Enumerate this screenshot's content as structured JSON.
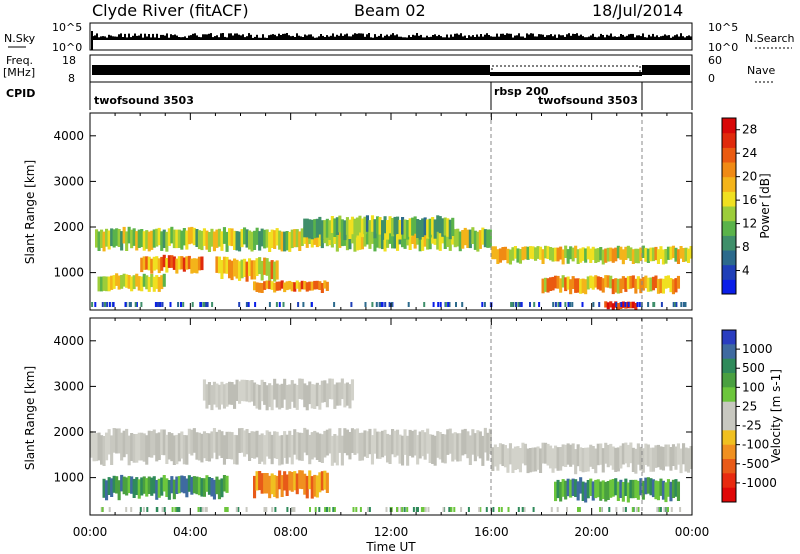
{
  "header": {
    "station": "Clyde River (fitACF)",
    "beam": "Beam 02",
    "date": "18/Jul/2014"
  },
  "top_panels": {
    "nsky_label": "N.Sky",
    "nsky_ticks": [
      "10^5",
      "10^0"
    ],
    "nsearch_label": "N.Search",
    "nsearch_ticks": [
      "10^5",
      "10^0"
    ],
    "freq_label": "Freq.",
    "freq_unit": "[MHz]",
    "freq_ticks": [
      "18",
      "8"
    ],
    "nave_label": "Nave",
    "nave_ticks": [
      "60",
      "0"
    ],
    "cpid_label": "CPID",
    "cpid_segments": [
      {
        "name": "twofsound 3503",
        "start_hour": 0,
        "end_hour": 16
      },
      {
        "name": "rbsp 200",
        "start_hour": 16,
        "end_hour": 22
      },
      {
        "name": "twofsound 3503",
        "start_hour": 16,
        "end_hour": 22
      }
    ]
  },
  "chart_data": [
    {
      "type": "heatmap",
      "name": "power",
      "xlabel": "Time UT",
      "ylabel": "Slant Range [km]",
      "xticks": [
        "00:00",
        "04:00",
        "08:00",
        "12:00",
        "16:00",
        "20:00",
        "00:00"
      ],
      "xlim_hours": [
        0,
        24
      ],
      "yticks": [
        1000,
        2000,
        3000,
        4000
      ],
      "ylim": [
        180,
        4500
      ],
      "colorbar": {
        "label": "Power [dB]",
        "ticks": [
          4,
          8,
          12,
          16,
          20,
          24,
          28
        ],
        "range": [
          0,
          30
        ],
        "colors": [
          "#0a1ee8",
          "#1f3fb8",
          "#2c6a8c",
          "#3f8f6a",
          "#5ab34a",
          "#9ccd3a",
          "#f0e020",
          "#f4b41a",
          "#f08a14",
          "#ea5a10",
          "#e02a0c",
          "#d80808"
        ]
      },
      "bands": [
        {
          "t0": 0.2,
          "t1": 16.0,
          "r0": 1550,
          "r1": 1950,
          "val": 14
        },
        {
          "t0": 2.0,
          "t1": 4.5,
          "r0": 1050,
          "r1": 1350,
          "val": 22
        },
        {
          "t0": 0.3,
          "t1": 3.0,
          "r0": 650,
          "r1": 950,
          "val": 16
        },
        {
          "t0": 5.0,
          "t1": 7.5,
          "r0": 900,
          "r1": 1300,
          "val": 18
        },
        {
          "t0": 6.5,
          "t1": 9.5,
          "r0": 600,
          "r1": 800,
          "val": 22
        },
        {
          "t0": 8.5,
          "t1": 14.5,
          "r0": 1800,
          "r1": 2200,
          "val": 12
        },
        {
          "t0": 16.0,
          "t1": 24.0,
          "r0": 1250,
          "r1": 1550,
          "val": 16
        },
        {
          "t0": 18.0,
          "t1": 23.5,
          "r0": 600,
          "r1": 900,
          "val": 20
        },
        {
          "t0": 20.5,
          "t1": 21.8,
          "r0": 200,
          "r1": 350,
          "val": 28
        }
      ]
    },
    {
      "type": "heatmap",
      "name": "velocity",
      "xlabel": "Time UT",
      "ylabel": "Slant Range [km]",
      "xticks": [
        "00:00",
        "04:00",
        "08:00",
        "12:00",
        "16:00",
        "20:00",
        "00:00"
      ],
      "xlim_hours": [
        0,
        24
      ],
      "yticks": [
        1000,
        2000,
        3000,
        4000
      ],
      "ylim": [
        180,
        4500
      ],
      "colorbar": {
        "label": "Velocity [m s-1]",
        "ticks": [
          "1000",
          "500",
          "100",
          "25",
          "-25",
          "-100",
          "-500",
          "-1000"
        ],
        "colors": [
          "#2a3dc0",
          "#3f6aa0",
          "#2f8a5a",
          "#4aa040",
          "#6cc63c",
          "#c8c8c0",
          "#c8c8c0",
          "#f0c020",
          "#f09020",
          "#e85a18",
          "#e82a10",
          "#e00808"
        ]
      },
      "bands": [
        {
          "t0": 0.0,
          "t1": 16.0,
          "r0": 1400,
          "r1": 2000,
          "val": "grey"
        },
        {
          "t0": 16.0,
          "t1": 24.0,
          "r0": 1200,
          "r1": 1700,
          "val": "grey"
        },
        {
          "t0": 4.5,
          "t1": 10.5,
          "r0": 2600,
          "r1": 3100,
          "val": "grey"
        },
        {
          "t0": 0.5,
          "t1": 5.5,
          "r0": 600,
          "r1": 1000,
          "val": "green"
        },
        {
          "t0": 6.5,
          "t1": 9.5,
          "r0": 650,
          "r1": 1100,
          "val": "orange"
        },
        {
          "t0": 18.5,
          "t1": 23.5,
          "r0": 550,
          "r1": 950,
          "val": "green"
        }
      ]
    }
  ]
}
